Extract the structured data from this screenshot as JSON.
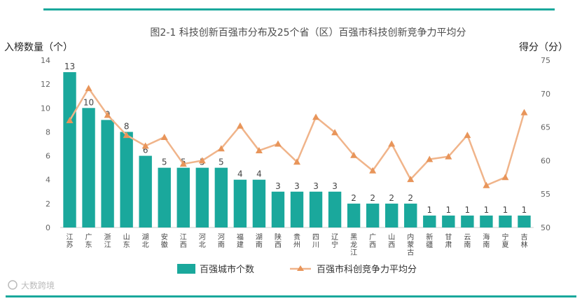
{
  "chart_data": {
    "type": "bar+line",
    "title": "图2-1 科技创新百强市分布及25个省（区）百强市科技创新竞争力平均分",
    "ylabel_left": "入榜数量（个）",
    "ylabel_right": "得分（分）",
    "y_left_lim": [
      0,
      14
    ],
    "y_left_ticks": [
      0,
      2,
      4,
      6,
      8,
      10,
      12,
      14
    ],
    "y_right_lim": [
      50,
      75
    ],
    "y_right_ticks": [
      50,
      55,
      60,
      65,
      70,
      75
    ],
    "categories": [
      "江苏",
      "广东",
      "浙江",
      "山东",
      "湖北",
      "安徽",
      "江西",
      "河北",
      "河南",
      "福建",
      "湖南",
      "陕西",
      "贵州",
      "四川",
      "辽宁",
      "黑龙江",
      "广西",
      "山西",
      "内蒙古",
      "新疆",
      "甘肃",
      "云南",
      "海南",
      "宁夏",
      "吉林"
    ],
    "series": [
      {
        "name": "百强城市个数",
        "type": "bar",
        "axis": "left",
        "color": "#1aa89c",
        "values": [
          13,
          10,
          9,
          8,
          6,
          5,
          5,
          5,
          5,
          4,
          4,
          3,
          3,
          3,
          3,
          2,
          2,
          2,
          2,
          1,
          1,
          1,
          1,
          1,
          1
        ]
      },
      {
        "name": "百强市科创竞争力平均分",
        "type": "line",
        "axis": "right",
        "color": "#f0b48a",
        "values": [
          66.0,
          70.8,
          66.8,
          63.8,
          62.2,
          63.5,
          59.5,
          60.0,
          61.8,
          65.2,
          61.5,
          62.5,
          59.8,
          66.5,
          64.2,
          60.8,
          58.5,
          62.5,
          57.2,
          60.2,
          60.6,
          63.8,
          56.3,
          57.5,
          67.2
        ]
      }
    ],
    "grid": false,
    "legend_position": "bottom"
  },
  "watermark": "大数跨境"
}
